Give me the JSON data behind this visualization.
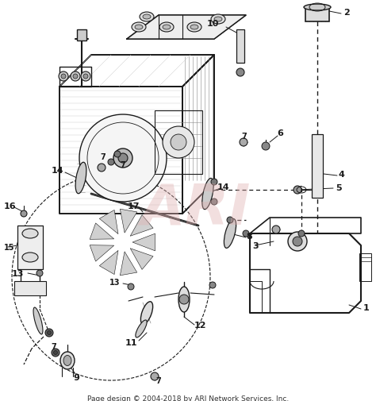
{
  "footer_text": "Page design © 2004-2018 by ARI Network Services, Inc.",
  "footer_fontsize": 6.5,
  "bg_color": "#ffffff",
  "line_color": "#1a1a1a",
  "gray_light": "#c8c8c8",
  "gray_med": "#888888",
  "gray_dark": "#444444",
  "watermark_color": "#e0b0b0",
  "watermark_text": "ARI",
  "fig_width": 4.74,
  "fig_height": 5.06,
  "dpi": 100
}
